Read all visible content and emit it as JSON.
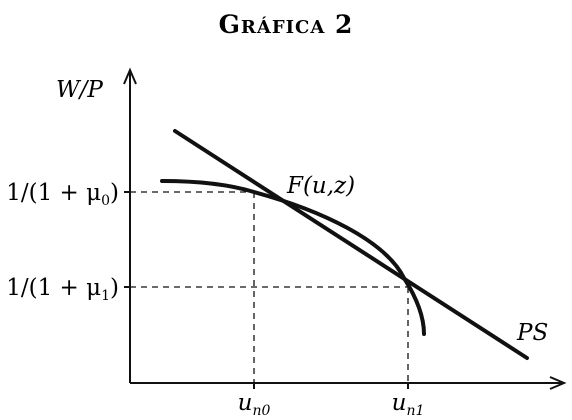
{
  "title": "Gráfica 2",
  "y_axis_label": "W/P",
  "curves": {
    "wage_setting_label": "F(u,z)",
    "price_setting_label": "PS"
  },
  "y_ticks": {
    "t0_main": "1/(1 + μ",
    "t0_sub": "0",
    "t0_tail": ")",
    "t1_main": "1/(1 + μ",
    "t1_sub": "1",
    "t1_tail": ")"
  },
  "x_ticks": {
    "t0_main": "u",
    "t0_sub": "n0",
    "t1_main": "u",
    "t1_sub": "n1"
  }
}
